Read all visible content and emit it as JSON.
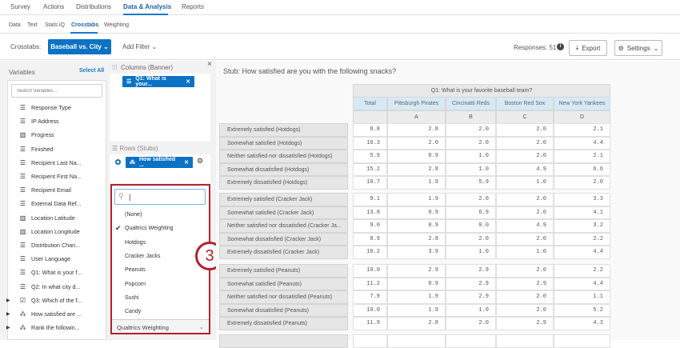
{
  "top_nav": [
    "Survey",
    "Actions",
    "Distributions",
    "Data & Analysis",
    "Reports"
  ],
  "sub_nav": [
    "Data",
    "Text",
    "Stats iQ",
    "Crosstabs",
    "Weighting"
  ],
  "toolbar": {
    "crosstabs_label": "Crosstabs:",
    "selected_crosstab": "Baseball vs. City",
    "add_filter": "Add Filter",
    "responses": "Responses: 51",
    "export": "Export",
    "settings": "Settings"
  },
  "variables": {
    "title": "Variables",
    "select_all": "Select All",
    "search_placeholder": "Search Variables...",
    "items": [
      {
        "label": "Response Type",
        "icon": "list"
      },
      {
        "label": "IP Address",
        "icon": "list"
      },
      {
        "label": "Progress",
        "icon": "bar-chart"
      },
      {
        "label": "Finished",
        "icon": "list"
      },
      {
        "label": "Recipient Last Na...",
        "icon": "list"
      },
      {
        "label": "Recipient First Na...",
        "icon": "list"
      },
      {
        "label": "Recipient Email",
        "icon": "list"
      },
      {
        "label": "External Data Ref...",
        "icon": "list"
      },
      {
        "label": "Location Latitude",
        "icon": "bar-chart"
      },
      {
        "label": "Location Longitude",
        "icon": "bar-chart"
      },
      {
        "label": "Distribution Chan...",
        "icon": "list"
      },
      {
        "label": "User Language",
        "icon": "list"
      },
      {
        "label": "Q1: What is your f...",
        "icon": "list"
      },
      {
        "label": "Q2: In what city d...",
        "icon": "list"
      },
      {
        "label": "Q3: Which of the f...",
        "icon": "checkbox"
      },
      {
        "label": "How satisfied are ...",
        "icon": "matrix"
      },
      {
        "label": "Rank the followin...",
        "icon": "matrix"
      }
    ]
  },
  "columns": {
    "title": "Columns (Banner)",
    "chip": "Q1: What is your..."
  },
  "rows": {
    "title": "Rows (Stubs)",
    "chip": "How satisfied ..."
  },
  "weight_dropdown": {
    "search_value": "|",
    "options": [
      "(None)",
      "Qualtrics Weighting",
      "Hotdogs",
      "Cracker Jacks",
      "Peanuts",
      "Popcorn",
      "Sushi",
      "Candy"
    ],
    "checked": "Qualtrics Weighting",
    "selected": "Qualtrics Weighting"
  },
  "callout": "3",
  "accent": "#0b72c4",
  "callout_color": "#b5202e",
  "stub_title": "Stub: How satisfied are you with the following snacks?",
  "table": {
    "banner": "Q1: What is your favorite baseball team?",
    "columns": [
      "Total",
      "Pittsburgh Pirates",
      "Cincinatti Reds",
      "Boston Red Sox",
      "New York Yankees"
    ],
    "letters": [
      "",
      "A",
      "B",
      "C",
      "D"
    ],
    "groups": [
      [
        {
          "label": "Extremely satisfied (Hotdogs)",
          "values": [
            "8.8",
            "2.8",
            "2.0",
            "2.0",
            "2.1"
          ]
        },
        {
          "label": "Somewhat satisfied (Hotdogs)",
          "values": [
            "10.3",
            "2.0",
            "2.0",
            "2.0",
            "4.4"
          ]
        },
        {
          "label": "Neither satisfied nor dissatisfied (Hotdogs)",
          "values": [
            "5.9",
            "0.9",
            "1.0",
            "2.0",
            "2.1"
          ]
        },
        {
          "label": "Somewhat dissatisfied (Hotdogs)",
          "values": [
            "15.2",
            "2.8",
            "1.0",
            "4.9",
            "6.6"
          ]
        },
        {
          "label": "Extremely dissatisfied (Hotdogs)",
          "values": [
            "10.7",
            "1.9",
            "5.9",
            "1.0",
            "2.0"
          ]
        }
      ],
      [
        {
          "label": "Extremely satisfied (Cracker Jack)",
          "values": [
            "9.1",
            "1.9",
            "2.0",
            "2.0",
            "3.3"
          ]
        },
        {
          "label": "Somewhat satisfied (Cracker Jack)",
          "values": [
            "13.8",
            "0.9",
            "6.9",
            "2.0",
            "4.1"
          ]
        },
        {
          "label": "Neither satisfied nor dissatisfied (Cracker Ja...",
          "values": [
            "9.0",
            "0.9",
            "0.0",
            "4.9",
            "3.2"
          ]
        },
        {
          "label": "Somewhat dissatisfied (Cracker Jack)",
          "values": [
            "8.9",
            "2.8",
            "2.0",
            "2.0",
            "2.2"
          ]
        },
        {
          "label": "Extremely dissatisfied (Cracker Jack)",
          "values": [
            "10.2",
            "3.9",
            "1.0",
            "1.0",
            "4.4"
          ]
        }
      ],
      [
        {
          "label": "Extremely satisfied (Peanuts)",
          "values": [
            "10.0",
            "2.9",
            "2.9",
            "2.0",
            "2.2"
          ]
        },
        {
          "label": "Somewhat satisfied (Peanuts)",
          "values": [
            "11.2",
            "0.9",
            "2.9",
            "2.9",
            "4.4"
          ]
        },
        {
          "label": "Neither satisfied nor dissatisfied (Peanuts)",
          "values": [
            "7.9",
            "1.9",
            "2.9",
            "2.0",
            "1.1"
          ]
        },
        {
          "label": "Somewhat dissatisfied (Peanuts)",
          "values": [
            "10.0",
            "1.9",
            "1.0",
            "2.0",
            "5.2"
          ]
        },
        {
          "label": "Extremely dissatisfied (Peanuts)",
          "values": [
            "11.9",
            "2.8",
            "2.0",
            "2.9",
            "4.3"
          ]
        }
      ]
    ]
  }
}
